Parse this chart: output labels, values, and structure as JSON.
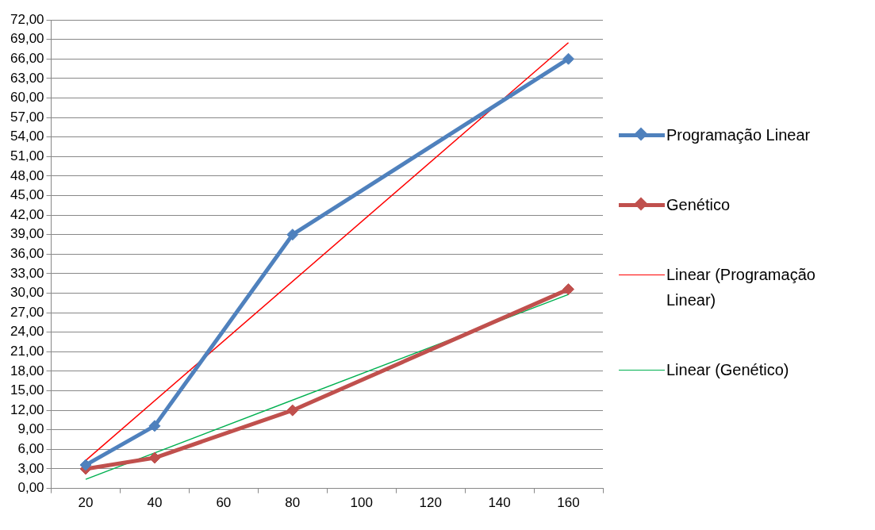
{
  "chart_data": {
    "type": "line",
    "categories": [
      "20",
      "40",
      "60",
      "80",
      "100",
      "120",
      "140",
      "160"
    ],
    "ylim": [
      0,
      72
    ],
    "yticks": [
      {
        "value": 0,
        "label": "0,00"
      },
      {
        "value": 3,
        "label": "3,00"
      },
      {
        "value": 6,
        "label": "6,00"
      },
      {
        "value": 9,
        "label": "9,00"
      },
      {
        "value": 12,
        "label": "12,00"
      },
      {
        "value": 15,
        "label": "15,00"
      },
      {
        "value": 18,
        "label": "18,00"
      },
      {
        "value": 21,
        "label": "21,00"
      },
      {
        "value": 24,
        "label": "24,00"
      },
      {
        "value": 27,
        "label": "27,00"
      },
      {
        "value": 30,
        "label": "30,00"
      },
      {
        "value": 33,
        "label": "33,00"
      },
      {
        "value": 36,
        "label": "36,00"
      },
      {
        "value": 39,
        "label": "39,00"
      },
      {
        "value": 42,
        "label": "42,00"
      },
      {
        "value": 45,
        "label": "45,00"
      },
      {
        "value": 48,
        "label": "48,00"
      },
      {
        "value": 51,
        "label": "51,00"
      },
      {
        "value": 54,
        "label": "54,00"
      },
      {
        "value": 57,
        "label": "57,00"
      },
      {
        "value": 60,
        "label": "60,00"
      },
      {
        "value": 63,
        "label": "63,00"
      },
      {
        "value": 66,
        "label": "66,00"
      },
      {
        "value": 69,
        "label": "69,00"
      },
      {
        "value": 72,
        "label": "72,00"
      }
    ],
    "grid": "y",
    "legend": "right",
    "line_style": "solid",
    "series": [
      {
        "name": "Programação Linear",
        "color": "#4f81bd",
        "values": [
          3.6,
          9.6,
          null,
          39.0,
          null,
          null,
          null,
          66.0
        ],
        "marker": "diamond"
      },
      {
        "name": "Genético",
        "color": "#c0504d",
        "values": [
          3.0,
          4.7,
          null,
          12.0,
          null,
          null,
          null,
          30.6
        ],
        "marker": "diamond"
      },
      {
        "name": "Linear (Programação Linear)",
        "color": "#ff0000",
        "values": [
          4.3,
          null,
          null,
          null,
          null,
          null,
          null,
          68.5
        ],
        "marker": "none"
      },
      {
        "name": "Linear (Genético)",
        "color": "#00b050",
        "values": [
          1.4,
          null,
          null,
          null,
          null,
          null,
          null,
          29.8
        ],
        "marker": "none"
      }
    ]
  }
}
